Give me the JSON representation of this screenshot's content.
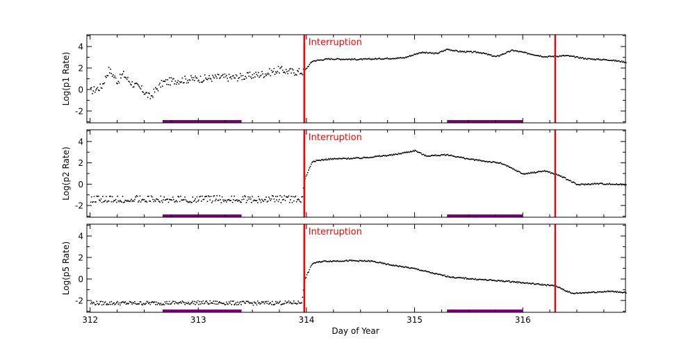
{
  "chart_data": [
    {
      "type": "scatter",
      "ylabel": "Log(p1 Rate)",
      "xlim": [
        311.97,
        316.95
      ],
      "ylim": [
        -3.1,
        5.1
      ],
      "yticks": [
        -2,
        0,
        2,
        4
      ],
      "annotation": "Interruption",
      "vlines": [
        313.98,
        316.3
      ],
      "bars": [
        [
          312.67,
          313.4
        ],
        [
          315.3,
          316.0
        ]
      ],
      "series": [
        {
          "name": "p1",
          "x": [
            312.0,
            312.1,
            312.17,
            312.25,
            312.3,
            312.35,
            312.4,
            312.48,
            312.55,
            312.6,
            312.67,
            312.8,
            312.9,
            313.0,
            313.1,
            313.2,
            313.3,
            313.45,
            313.6,
            313.75,
            313.85,
            313.97,
            314.05,
            314.2,
            314.5,
            314.9,
            315.05,
            315.2,
            315.3,
            315.4,
            315.6,
            315.75,
            315.9,
            316.1,
            316.2,
            316.4,
            316.6,
            316.8,
            316.95
          ],
          "y": [
            -0.1,
            0.3,
            1.9,
            0.8,
            1.5,
            0.9,
            0.5,
            0.0,
            -0.7,
            0.0,
            0.7,
            0.9,
            1.0,
            1.05,
            1.1,
            1.2,
            1.15,
            1.3,
            1.5,
            1.9,
            1.7,
            1.7,
            2.7,
            2.9,
            2.85,
            3.0,
            3.5,
            3.4,
            3.8,
            3.6,
            3.5,
            3.1,
            3.7,
            3.3,
            3.1,
            3.2,
            2.9,
            2.8,
            2.6
          ]
        }
      ]
    },
    {
      "type": "scatter",
      "ylabel": "Log(p2 Rate)",
      "xlim": [
        311.97,
        316.95
      ],
      "ylim": [
        -3.1,
        5.1
      ],
      "yticks": [
        -2,
        0,
        2,
        4
      ],
      "annotation": "Interruption",
      "vlines": [
        313.98,
        316.3
      ],
      "bars": [
        [
          312.67,
          313.4
        ],
        [
          315.3,
          316.0
        ]
      ],
      "series": [
        {
          "name": "p2",
          "x": [
            312.0,
            312.5,
            313.0,
            313.5,
            313.95,
            313.98,
            314.05,
            314.2,
            314.5,
            314.8,
            315.0,
            315.1,
            315.3,
            315.5,
            315.8,
            316.0,
            316.2,
            316.35,
            316.5,
            316.7,
            316.95
          ],
          "y": [
            -1.5,
            -1.5,
            -1.5,
            -1.5,
            -1.5,
            0.5,
            2.2,
            2.4,
            2.5,
            2.8,
            3.2,
            2.7,
            2.8,
            2.4,
            2.0,
            1.0,
            1.3,
            0.8,
            0.0,
            0.1,
            0.0
          ]
        }
      ]
    },
    {
      "type": "scatter",
      "ylabel": "Log(p5 Rate)",
      "xlim": [
        311.97,
        316.95
      ],
      "ylim": [
        -3.1,
        5.1
      ],
      "yticks": [
        -2,
        0,
        2,
        4
      ],
      "xticks": [
        312,
        313,
        314,
        315,
        316
      ],
      "xlabel": "Day of Year",
      "annotation": "Interruption",
      "vlines": [
        313.98,
        316.3
      ],
      "bars": [
        [
          312.67,
          313.4
        ],
        [
          315.3,
          316.0
        ]
      ],
      "series": [
        {
          "name": "p5",
          "x": [
            312.0,
            312.5,
            313.0,
            313.5,
            313.95,
            313.98,
            314.05,
            314.15,
            314.4,
            314.6,
            314.75,
            315.0,
            315.2,
            315.35,
            315.6,
            315.9,
            316.1,
            316.3,
            316.45,
            316.6,
            316.8,
            316.95
          ],
          "y": [
            -2.2,
            -2.2,
            -2.15,
            -2.2,
            -2.15,
            0.0,
            1.5,
            1.7,
            1.75,
            1.7,
            1.4,
            1.0,
            0.5,
            0.2,
            0.0,
            -0.2,
            -0.4,
            -0.6,
            -1.3,
            -1.2,
            -1.1,
            -1.2
          ]
        }
      ]
    }
  ]
}
